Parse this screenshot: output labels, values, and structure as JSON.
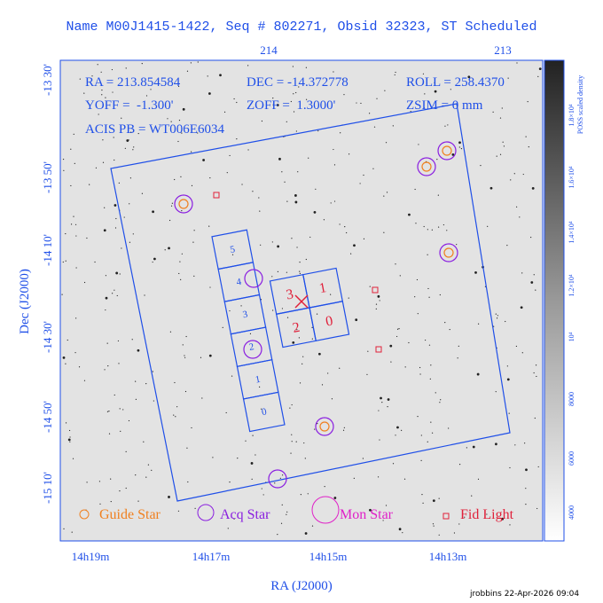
{
  "header": {
    "title": "Name M00J1415-1422, Seq # 802271, Obsid 32323, ST Scheduled"
  },
  "axes": {
    "top_ticks": [
      "214",
      "213"
    ],
    "left_ticks": [
      "-13 30'",
      "-13 50'",
      "-14 10'",
      "-14 30'",
      "-14 50'",
      "-15 10'"
    ],
    "left_label": "Dec (J2000)",
    "bottom_ticks": [
      "14h19m",
      "14h17m",
      "14h15m",
      "14h13m"
    ],
    "bottom_label": "RA (J2000)"
  },
  "info": {
    "ra": "RA = 213.854584",
    "dec": "DEC = -14.372778",
    "roll": "ROLL = 258.4370",
    "yoff": "YOFF =  -1.300'",
    "zoff": "ZOFF =  1.3000'",
    "zsim": "ZSIM = 0 mm",
    "acis": "ACIS PB = WT006E6034"
  },
  "s_chips": [
    "5",
    "4",
    "3",
    "2",
    "1",
    "0"
  ],
  "i_chips": [
    "3",
    "1",
    "2",
    "0"
  ],
  "legend": [
    "Guide Star",
    "Acq Star",
    "Mon Star",
    "Fid Light"
  ],
  "colorbar": {
    "label": "POSS scaled density",
    "ticks": [
      "1.8×10⁴",
      "1.6×10⁴",
      "1.4×10⁴",
      "1.2×10⁴",
      "10⁴",
      "8000",
      "6000",
      "4000"
    ]
  },
  "footer": "jrobbins 22-Apr-2026 09:04"
}
